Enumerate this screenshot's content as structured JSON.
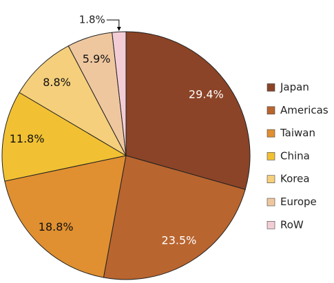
{
  "chart_data": {
    "type": "pie",
    "categories": [
      "Japan",
      "Americas",
      "Taiwan",
      "China",
      "Korea",
      "Europe",
      "RoW"
    ],
    "values": [
      29.4,
      23.5,
      18.8,
      11.8,
      8.8,
      5.9,
      1.8
    ],
    "value_labels": [
      "29.4%",
      "23.5%",
      "18.8%",
      "11.8%",
      "8.8%",
      "5.9%",
      "1.8%"
    ],
    "colors": [
      "#8b4427",
      "#b9652f",
      "#e08f31",
      "#f1c133",
      "#f5cf7b",
      "#efc79f",
      "#f3cdd5"
    ],
    "legend": "right"
  }
}
